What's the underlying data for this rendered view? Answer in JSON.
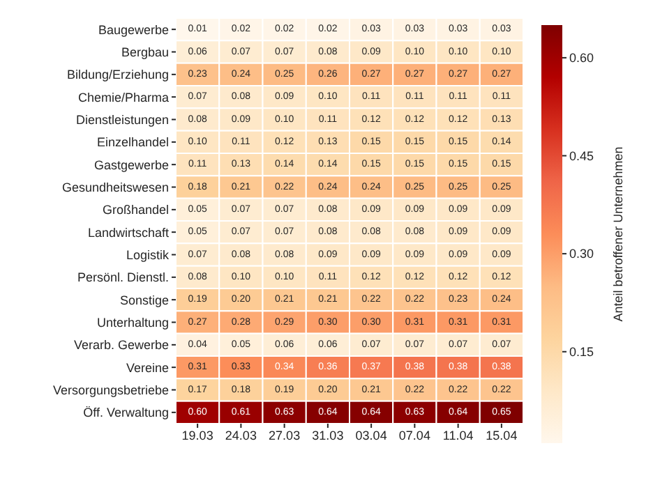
{
  "chart_data": {
    "type": "heatmap",
    "clabel": "Anteil betroffener Unternehmen",
    "categories": [
      "19.03",
      "24.03",
      "27.03",
      "31.03",
      "03.04",
      "07.04",
      "11.04",
      "15.04"
    ],
    "y_categories": [
      "Baugewerbe",
      "Bergbau",
      "Bildung/Erziehung",
      "Chemie/Pharma",
      "Dienstleistungen",
      "Einzelhandel",
      "Gastgewerbe",
      "Gesundheitswesen",
      "Großhandel",
      "Landwirtschaft",
      "Logistik",
      "Persönl. Dienstl.",
      "Sonstige",
      "Unterhaltung",
      "Verarb. Gewerbe",
      "Vereine",
      "Versorgungsbetriebe",
      "Öff. Verwaltung"
    ],
    "cells": [
      [
        0.01,
        0.02,
        0.02,
        0.02,
        0.03,
        0.03,
        0.03,
        0.03
      ],
      [
        0.06,
        0.07,
        0.07,
        0.08,
        0.09,
        0.1,
        0.1,
        0.1
      ],
      [
        0.23,
        0.24,
        0.25,
        0.26,
        0.27,
        0.27,
        0.27,
        0.27
      ],
      [
        0.07,
        0.08,
        0.09,
        0.1,
        0.11,
        0.11,
        0.11,
        0.11
      ],
      [
        0.08,
        0.09,
        0.1,
        0.11,
        0.12,
        0.12,
        0.12,
        0.13
      ],
      [
        0.1,
        0.11,
        0.12,
        0.13,
        0.15,
        0.15,
        0.15,
        0.14
      ],
      [
        0.11,
        0.13,
        0.14,
        0.14,
        0.15,
        0.15,
        0.15,
        0.15
      ],
      [
        0.18,
        0.21,
        0.22,
        0.24,
        0.24,
        0.25,
        0.25,
        0.25
      ],
      [
        0.05,
        0.07,
        0.07,
        0.08,
        0.09,
        0.09,
        0.09,
        0.09
      ],
      [
        0.05,
        0.07,
        0.07,
        0.08,
        0.08,
        0.08,
        0.09,
        0.09
      ],
      [
        0.07,
        0.08,
        0.08,
        0.09,
        0.09,
        0.09,
        0.09,
        0.09
      ],
      [
        0.08,
        0.1,
        0.1,
        0.11,
        0.12,
        0.12,
        0.12,
        0.12
      ],
      [
        0.19,
        0.2,
        0.21,
        0.21,
        0.22,
        0.22,
        0.23,
        0.24
      ],
      [
        0.27,
        0.28,
        0.29,
        0.3,
        0.3,
        0.31,
        0.31,
        0.31
      ],
      [
        0.04,
        0.05,
        0.06,
        0.06,
        0.07,
        0.07,
        0.07,
        0.07
      ],
      [
        0.31,
        0.33,
        0.34,
        0.36,
        0.37,
        0.38,
        0.38,
        0.38
      ],
      [
        0.17,
        0.18,
        0.19,
        0.2,
        0.21,
        0.22,
        0.22,
        0.22
      ],
      [
        0.6,
        0.61,
        0.63,
        0.64,
        0.64,
        0.63,
        0.64,
        0.65
      ]
    ],
    "cell_labels": [
      [
        "0.01",
        "0.02",
        "0.02",
        "0.02",
        "0.03",
        "0.03",
        "0.03",
        "0.03"
      ],
      [
        "0.06",
        "0.07",
        "0.07",
        "0.08",
        "0.09",
        "0.10",
        "0.10",
        "0.10"
      ],
      [
        "0.23",
        "0.24",
        "0.25",
        "0.26",
        "0.27",
        "0.27",
        "0.27",
        "0.27"
      ],
      [
        "0.07",
        "0.08",
        "0.09",
        "0.10",
        "0.11",
        "0.11",
        "0.11",
        "0.11"
      ],
      [
        "0.08",
        "0.09",
        "0.10",
        "0.11",
        "0.12",
        "0.12",
        "0.12",
        "0.13"
      ],
      [
        "0.10",
        "0.11",
        "0.12",
        "0.13",
        "0.15",
        "0.15",
        "0.15",
        "0.14"
      ],
      [
        "0.11",
        "0.13",
        "0.14",
        "0.14",
        "0.15",
        "0.15",
        "0.15",
        "0.15"
      ],
      [
        "0.18",
        "0.21",
        "0.22",
        "0.24",
        "0.24",
        "0.25",
        "0.25",
        "0.25"
      ],
      [
        "0.05",
        "0.07",
        "0.07",
        "0.08",
        "0.09",
        "0.09",
        "0.09",
        "0.09"
      ],
      [
        "0.05",
        "0.07",
        "0.07",
        "0.08",
        "0.08",
        "0.08",
        "0.09",
        "0.09"
      ],
      [
        "0.07",
        "0.08",
        "0.08",
        "0.09",
        "0.09",
        "0.09",
        "0.09",
        "0.09"
      ],
      [
        "0.08",
        "0.10",
        "0.10",
        "0.11",
        "0.12",
        "0.12",
        "0.12",
        "0.12"
      ],
      [
        "0.19",
        "0.20",
        "0.21",
        "0.21",
        "0.22",
        "0.22",
        "0.23",
        "0.24"
      ],
      [
        "0.27",
        "0.28",
        "0.29",
        "0.30",
        "0.30",
        "0.31",
        "0.31",
        "0.31"
      ],
      [
        "0.04",
        "0.05",
        "0.06",
        "0.06",
        "0.07",
        "0.07",
        "0.07",
        "0.07"
      ],
      [
        "0.31",
        "0.33",
        "0.34",
        "0.36",
        "0.37",
        "0.38",
        "0.38",
        "0.38"
      ],
      [
        "0.17",
        "0.18",
        "0.19",
        "0.20",
        "0.21",
        "0.22",
        "0.22",
        "0.22"
      ],
      [
        "0.60",
        "0.61",
        "0.63",
        "0.64",
        "0.64",
        "0.63",
        "0.64",
        "0.65"
      ]
    ],
    "clim": [
      0.01,
      0.65
    ],
    "cticks": [
      0.15,
      {
        "value": 0.3,
        "label": "0.30"
      },
      0.45,
      {
        "value": 0.6,
        "label": "0.60"
      }
    ]
  }
}
